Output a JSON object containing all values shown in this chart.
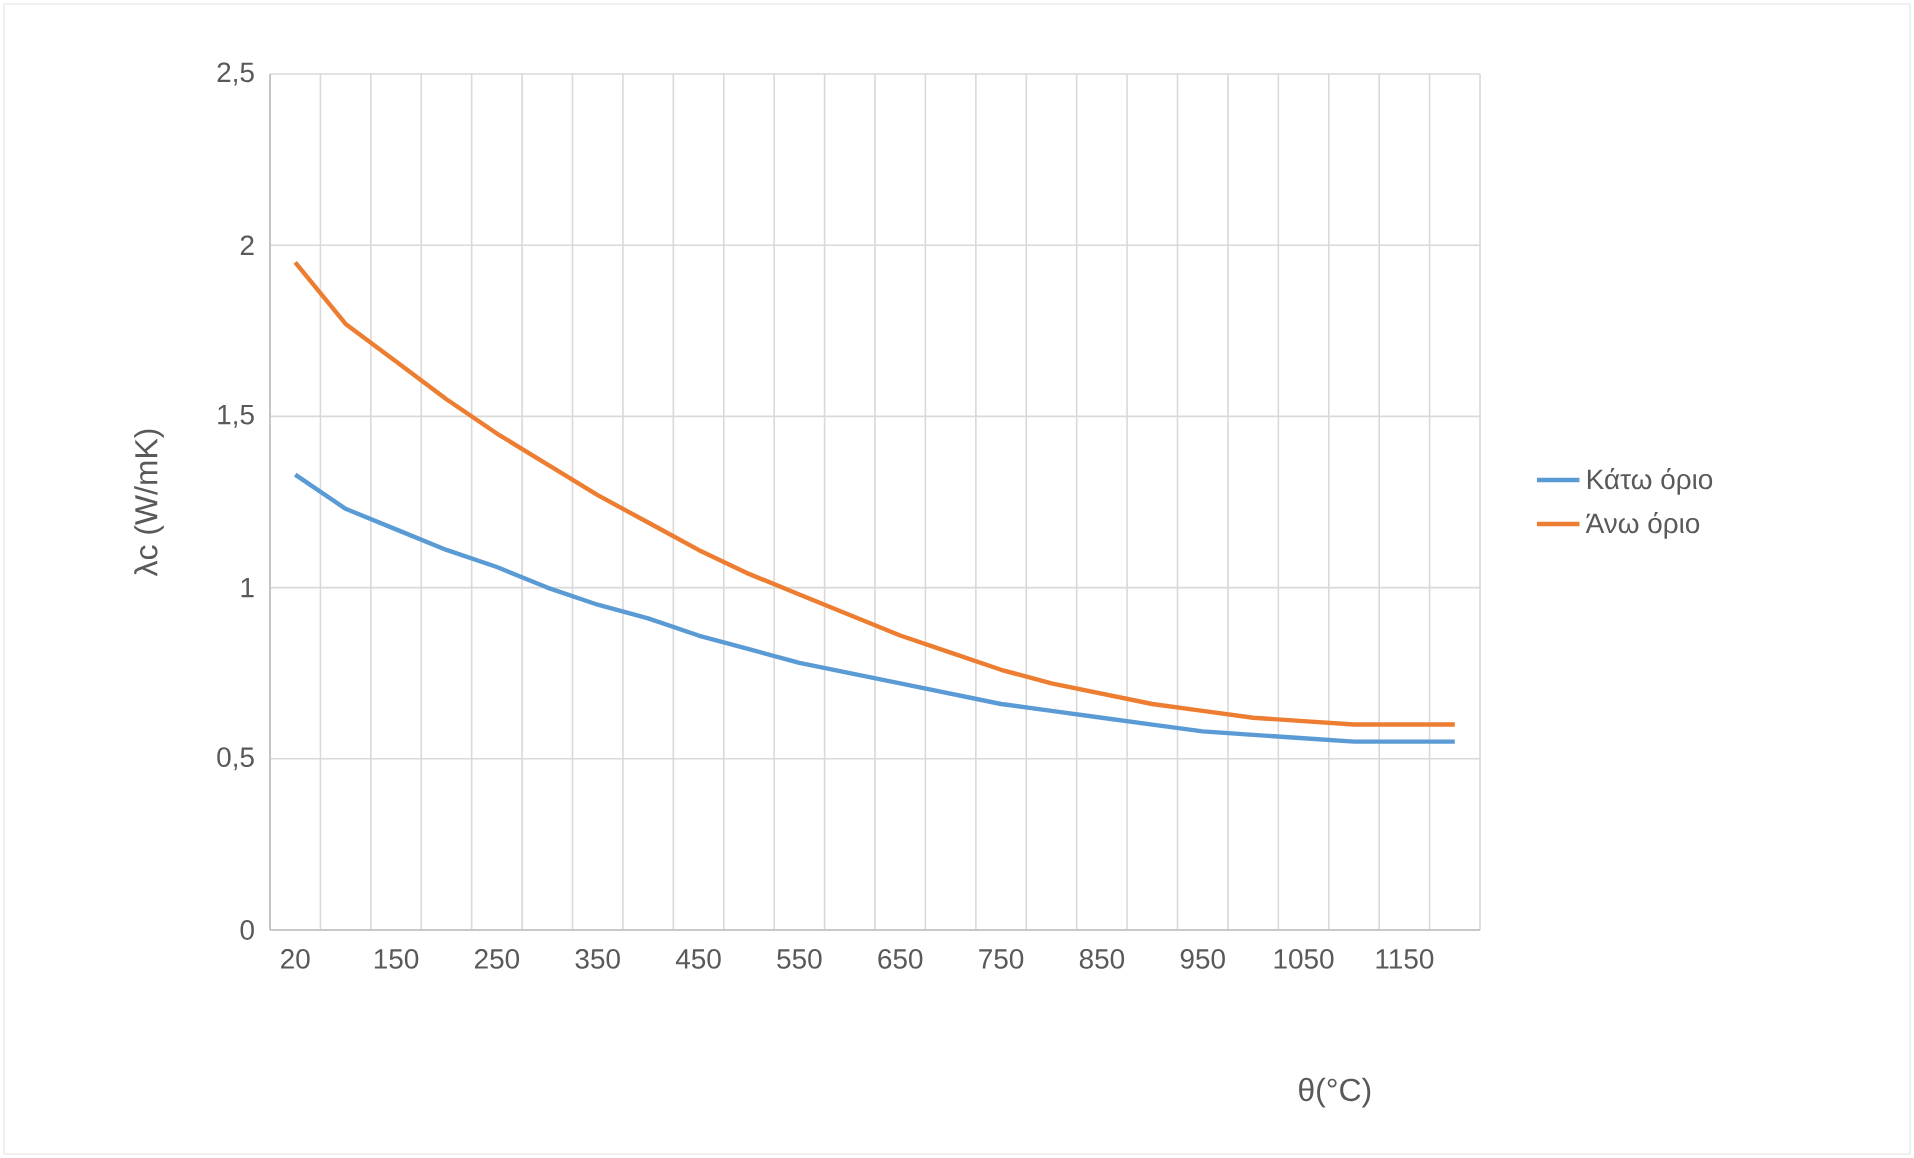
{
  "chart_data": {
    "type": "line",
    "xlabel": "θ(°C)",
    "ylabel": "λc (W/mK)",
    "categories": [
      "20",
      null,
      "150",
      null,
      "250",
      null,
      "350",
      null,
      "450",
      null,
      "550",
      null,
      "650",
      null,
      "750",
      null,
      "850",
      null,
      "950",
      null,
      "1050",
      null,
      "1150",
      null
    ],
    "series": [
      {
        "name": "Κάτω όριο",
        "color": "#5b9bd5",
        "values": [
          1.33,
          1.23,
          1.17,
          1.11,
          1.06,
          1.0,
          0.95,
          0.91,
          0.86,
          0.82,
          0.78,
          0.75,
          0.72,
          0.69,
          0.66,
          0.64,
          0.62,
          0.6,
          0.58,
          0.57,
          0.56,
          0.55,
          0.55,
          0.55
        ]
      },
      {
        "name": "Άνω όριο",
        "color": "#ed7d31",
        "values": [
          1.95,
          1.77,
          1.66,
          1.55,
          1.45,
          1.36,
          1.27,
          1.19,
          1.11,
          1.04,
          0.98,
          0.92,
          0.86,
          0.81,
          0.76,
          0.72,
          0.69,
          0.66,
          0.64,
          0.62,
          0.61,
          0.6,
          0.6,
          0.6
        ]
      }
    ],
    "ylim": [
      0,
      2.5
    ],
    "yticks": [
      0,
      {
        "value": 0.5,
        "label": "0,5"
      },
      1,
      {
        "value": 1.5,
        "label": "1,5"
      },
      2,
      {
        "value": 2.5,
        "label": "2,5"
      }
    ],
    "grid": true,
    "legend": "right"
  }
}
